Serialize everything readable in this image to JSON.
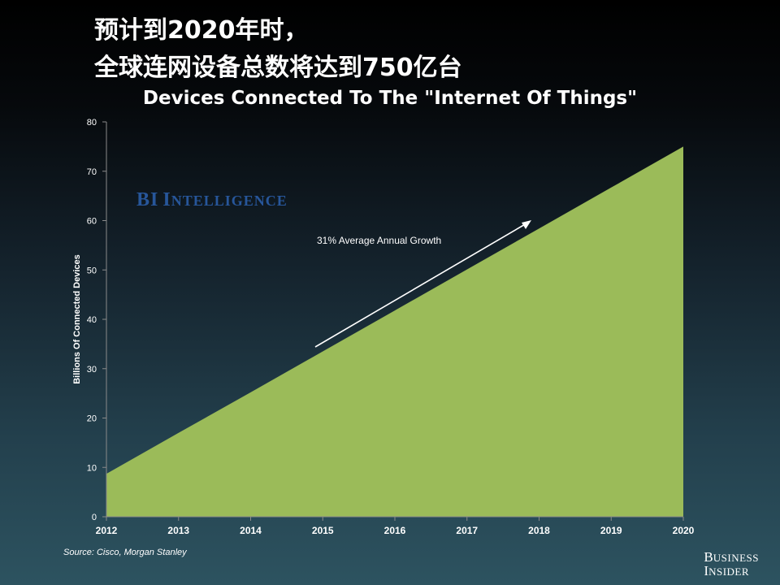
{
  "headline": {
    "line1": "预计到2020年时，",
    "line2": "全球连网设备总数将达到750亿台"
  },
  "chart_data": {
    "type": "area",
    "title": "Devices Connected To The \"Internet Of Things\"",
    "xlabel": "",
    "ylabel": "Billions Of Connected Devices",
    "categories": [
      "2012",
      "2013",
      "2014",
      "2015",
      "2016",
      "2017",
      "2018",
      "2019",
      "2020"
    ],
    "values": [
      8.7,
      17,
      25.2,
      33.5,
      41.8,
      50.1,
      58.4,
      66.7,
      75
    ],
    "ylim": [
      0,
      80
    ],
    "yticks": [
      "0",
      "10",
      "20",
      "30",
      "40",
      "50",
      "60",
      "70",
      "80"
    ],
    "annotation": "31% Average Annual Growth",
    "grid": false,
    "fill_color": "#9bbb59"
  },
  "watermark": {
    "first": "BI",
    "second_initial": "I",
    "second_rest": "NTELLIGENCE"
  },
  "source": "Source: Cisco, Morgan Stanley",
  "logo": {
    "line1_initial": "B",
    "line1_rest": "USINESS",
    "line2_initial": "I",
    "line2_rest": "NSIDER"
  },
  "colors": {
    "area": "#9bbb59",
    "text": "#ffffff",
    "watermark": "#27569a"
  }
}
